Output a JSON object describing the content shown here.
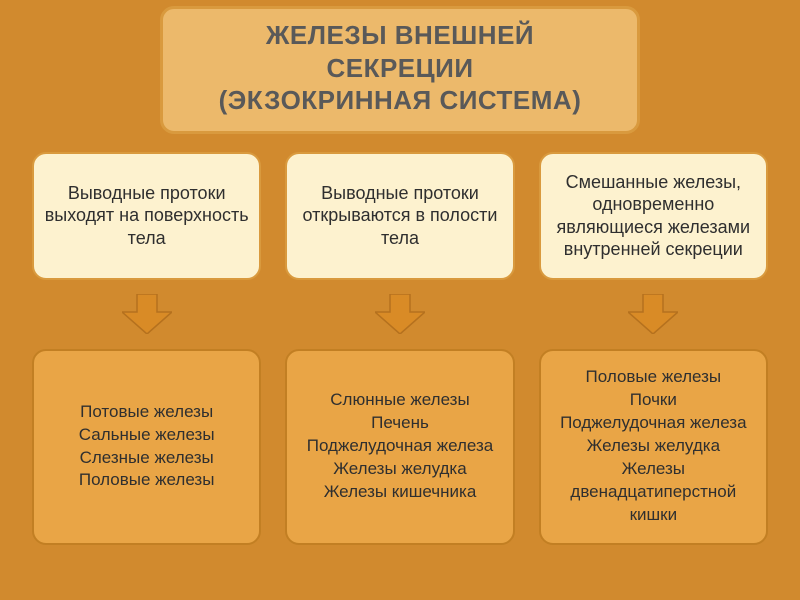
{
  "layout": {
    "bg_color": "#d18a2e",
    "title": {
      "line1": "ЖЕЛЕЗЫ ВНЕШНЕЙ",
      "line2": "СЕКРЕЦИИ",
      "line3": "(ЭКЗОКРИННАЯ СИСТЕМА)",
      "bg": "#ecb96b",
      "border": "#d99a3e",
      "color": "#595959",
      "fontsize": 26
    },
    "top_box": {
      "bg": "#fdf2cf",
      "border": "#d99a3e",
      "color": "#2f2f2f",
      "fontsize": 18,
      "height": 128
    },
    "bottom_box": {
      "bg": "#e9a546",
      "border": "#c27f23",
      "color": "#2f2f2f",
      "fontsize": 17,
      "height": 196
    },
    "arrow": {
      "fill": "#d98b26",
      "stroke": "#b5711e",
      "width": 50,
      "height": 40
    }
  },
  "columns": [
    {
      "top": "Выводные протоки выходят на поверхность тела",
      "bottom": "Потовые железы\nСальные железы\nСлезные железы\nПоловые железы"
    },
    {
      "top": "Выводные протоки открываются в полости тела",
      "bottom": "Слюнные железы\nПечень\nПоджелудочная железа\nЖелезы желудка\nЖелезы кишечника"
    },
    {
      "top": "Смешанные железы, одновременно являющиеся железами внутренней секреции",
      "bottom": "Половые железы\nПочки\nПоджелудочная железа\nЖелезы желудка\nЖелезы двенадцатиперстной кишки"
    }
  ]
}
